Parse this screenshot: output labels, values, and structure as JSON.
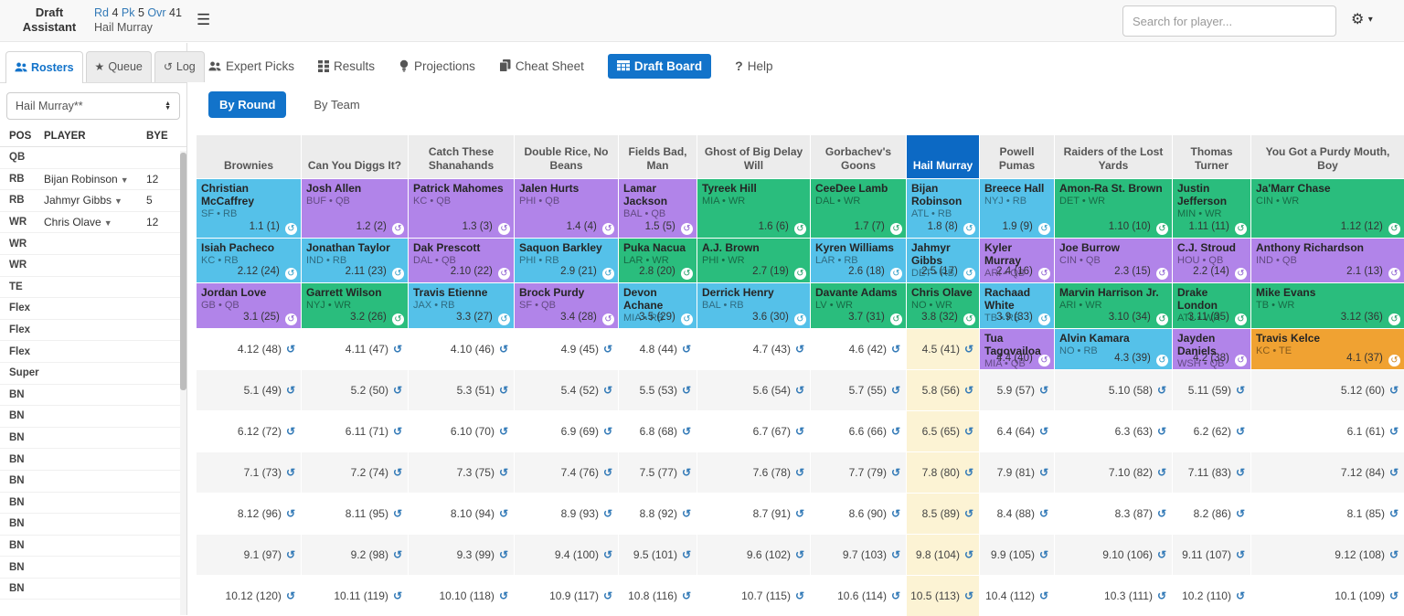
{
  "header": {
    "app_title_line1": "Draft",
    "app_title_line2": "Assistant",
    "pick_status": {
      "round_label": "Rd",
      "round": "4",
      "pick_label": "Pk",
      "pick": "5",
      "overall_label": "Ovr",
      "overall": "41",
      "on_clock_team": "Hail Murray"
    },
    "search_placeholder": "Search for player...",
    "icons": [
      "hamburger-icon",
      "gear-icon",
      "caret-down-icon"
    ]
  },
  "sidebar": {
    "tabs": [
      {
        "label": "Rosters",
        "icon": "users-icon",
        "active": true
      },
      {
        "label": "Queue",
        "icon": "star-icon",
        "active": false
      },
      {
        "label": "Log",
        "icon": "history-icon",
        "active": false
      }
    ],
    "team_select_value": "Hail Murray**",
    "roster": {
      "columns": [
        "POS",
        "PLAYER",
        "BYE"
      ],
      "slots": [
        {
          "pos": "QB",
          "player": "",
          "bye": ""
        },
        {
          "pos": "RB",
          "player": "Bijan Robinson",
          "bye": "12"
        },
        {
          "pos": "RB",
          "player": "Jahmyr Gibbs",
          "bye": "5"
        },
        {
          "pos": "WR",
          "player": "Chris Olave",
          "bye": "12"
        },
        {
          "pos": "WR",
          "player": "",
          "bye": ""
        },
        {
          "pos": "WR",
          "player": "",
          "bye": ""
        },
        {
          "pos": "TE",
          "player": "",
          "bye": ""
        },
        {
          "pos": "Flex",
          "player": "",
          "bye": ""
        },
        {
          "pos": "Flex",
          "player": "",
          "bye": ""
        },
        {
          "pos": "Flex",
          "player": "",
          "bye": ""
        },
        {
          "pos": "Super",
          "player": "",
          "bye": ""
        },
        {
          "pos": "BN",
          "player": "",
          "bye": ""
        },
        {
          "pos": "BN",
          "player": "",
          "bye": ""
        },
        {
          "pos": "BN",
          "player": "",
          "bye": ""
        },
        {
          "pos": "BN",
          "player": "",
          "bye": ""
        },
        {
          "pos": "BN",
          "player": "",
          "bye": ""
        },
        {
          "pos": "BN",
          "player": "",
          "bye": ""
        },
        {
          "pos": "BN",
          "player": "",
          "bye": ""
        },
        {
          "pos": "BN",
          "player": "",
          "bye": ""
        },
        {
          "pos": "BN",
          "player": "",
          "bye": ""
        },
        {
          "pos": "BN",
          "player": "",
          "bye": ""
        }
      ]
    }
  },
  "nav": {
    "items": [
      {
        "label": "Expert Picks",
        "icon": "users-icon",
        "active": false
      },
      {
        "label": "Results",
        "icon": "grid-icon",
        "active": false
      },
      {
        "label": "Projections",
        "icon": "lightbulb-icon",
        "active": false
      },
      {
        "label": "Cheat Sheet",
        "icon": "copy-icon",
        "active": false
      },
      {
        "label": "Draft Board",
        "icon": "table-icon",
        "active": true
      },
      {
        "label": "Help",
        "icon": "question-icon",
        "active": false
      }
    ]
  },
  "board": {
    "view_tabs": [
      {
        "label": "By Round",
        "active": true
      },
      {
        "label": "By Team",
        "active": false
      }
    ],
    "my_team": "Hail Murray",
    "my_team_index": 7,
    "colors": {
      "RB": "#55c1e9",
      "QB": "#b184e9",
      "WR": "#2abd7d",
      "TE": "#f0a232",
      "my_team_header": "#0c69c4",
      "my_team_empty": "#fcf3d4",
      "active_blue": "#1273ca",
      "link_blue": "#337ab7"
    },
    "teams": [
      "Brownies",
      "Can You Diggs It?",
      "Catch These Shanahands",
      "Double Rice, No Beans",
      "Fields Bad, Man",
      "Ghost of Big Delay Will",
      "Gorbachev's Goons",
      "Hail Murray",
      "Powell Pumas",
      "Raiders of the Lost Yards",
      "Thomas Turner",
      "You Got a Purdy Mouth, Boy"
    ],
    "rows": [
      [
        {
          "player": "Christian McCaffrey",
          "team": "SF",
          "pos": "RB",
          "pick": "1.1 (1)"
        },
        {
          "player": "Josh Allen",
          "team": "BUF",
          "pos": "QB",
          "pick": "1.2 (2)"
        },
        {
          "player": "Patrick Mahomes",
          "team": "KC",
          "pos": "QB",
          "pick": "1.3 (3)"
        },
        {
          "player": "Jalen Hurts",
          "team": "PHI",
          "pos": "QB",
          "pick": "1.4 (4)"
        },
        {
          "player": "Lamar Jackson",
          "team": "BAL",
          "pos": "QB",
          "pick": "1.5 (5)"
        },
        {
          "player": "Tyreek Hill",
          "team": "MIA",
          "pos": "WR",
          "pick": "1.6 (6)"
        },
        {
          "player": "CeeDee Lamb",
          "team": "DAL",
          "pos": "WR",
          "pick": "1.7 (7)"
        },
        {
          "player": "Bijan Robinson",
          "team": "ATL",
          "pos": "RB",
          "pick": "1.8 (8)"
        },
        {
          "player": "Breece Hall",
          "team": "NYJ",
          "pos": "RB",
          "pick": "1.9 (9)"
        },
        {
          "player": "Amon-Ra St. Brown",
          "team": "DET",
          "pos": "WR",
          "pick": "1.10 (10)"
        },
        {
          "player": "Justin Jefferson",
          "team": "MIN",
          "pos": "WR",
          "pick": "1.11 (11)"
        },
        {
          "player": "Ja'Marr Chase",
          "team": "CIN",
          "pos": "WR",
          "pick": "1.12 (12)"
        }
      ],
      [
        {
          "player": "Isiah Pacheco",
          "team": "KC",
          "pos": "RB",
          "pick": "2.12 (24)"
        },
        {
          "player": "Jonathan Taylor",
          "team": "IND",
          "pos": "RB",
          "pick": "2.11 (23)"
        },
        {
          "player": "Dak Prescott",
          "team": "DAL",
          "pos": "QB",
          "pick": "2.10 (22)"
        },
        {
          "player": "Saquon Barkley",
          "team": "PHI",
          "pos": "RB",
          "pick": "2.9 (21)"
        },
        {
          "player": "Puka Nacua",
          "team": "LAR",
          "pos": "WR",
          "pick": "2.8 (20)"
        },
        {
          "player": "A.J. Brown",
          "team": "PHI",
          "pos": "WR",
          "pick": "2.7 (19)"
        },
        {
          "player": "Kyren Williams",
          "team": "LAR",
          "pos": "RB",
          "pick": "2.6 (18)"
        },
        {
          "player": "Jahmyr Gibbs",
          "team": "DET",
          "pos": "RB",
          "pick": "2.5 (17)"
        },
        {
          "player": "Kyler Murray",
          "team": "ARI",
          "pos": "QB",
          "pick": "2.4 (16)"
        },
        {
          "player": "Joe Burrow",
          "team": "CIN",
          "pos": "QB",
          "pick": "2.3 (15)"
        },
        {
          "player": "C.J. Stroud",
          "team": "HOU",
          "pos": "QB",
          "pick": "2.2 (14)"
        },
        {
          "player": "Anthony Richardson",
          "team": "IND",
          "pos": "QB",
          "pick": "2.1 (13)"
        }
      ],
      [
        {
          "player": "Jordan Love",
          "team": "GB",
          "pos": "QB",
          "pick": "3.1 (25)"
        },
        {
          "player": "Garrett Wilson",
          "team": "NYJ",
          "pos": "WR",
          "pick": "3.2 (26)"
        },
        {
          "player": "Travis Etienne",
          "team": "JAX",
          "pos": "RB",
          "pick": "3.3 (27)"
        },
        {
          "player": "Brock Purdy",
          "team": "SF",
          "pos": "QB",
          "pick": "3.4 (28)"
        },
        {
          "player": "Devon Achane",
          "team": "MIA",
          "pos": "RB",
          "pick": "3.5 (29)"
        },
        {
          "player": "Derrick Henry",
          "team": "BAL",
          "pos": "RB",
          "pick": "3.6 (30)"
        },
        {
          "player": "Davante Adams",
          "team": "LV",
          "pos": "WR",
          "pick": "3.7 (31)"
        },
        {
          "player": "Chris Olave",
          "team": "NO",
          "pos": "WR",
          "pick": "3.8 (32)"
        },
        {
          "player": "Rachaad White",
          "team": "TB",
          "pos": "RB",
          "pick": "3.9 (33)"
        },
        {
          "player": "Marvin Harrison Jr.",
          "team": "ARI",
          "pos": "WR",
          "pick": "3.10 (34)"
        },
        {
          "player": "Drake London",
          "team": "ATL",
          "pos": "WR",
          "pick": "3.11 (35)"
        },
        {
          "player": "Mike Evans",
          "team": "TB",
          "pos": "WR",
          "pick": "3.12 (36)"
        }
      ],
      [
        {
          "pick": "4.12 (48)"
        },
        {
          "pick": "4.11 (47)"
        },
        {
          "pick": "4.10 (46)"
        },
        {
          "pick": "4.9 (45)"
        },
        {
          "pick": "4.8 (44)"
        },
        {
          "pick": "4.7 (43)"
        },
        {
          "pick": "4.6 (42)"
        },
        {
          "pick": "4.5 (41)"
        },
        {
          "player": "Tua Tagovailoa",
          "team": "MIA",
          "pos": "QB",
          "pick": "4.4 (40)"
        },
        {
          "player": "Alvin Kamara",
          "team": "NO",
          "pos": "RB",
          "pick": "4.3 (39)"
        },
        {
          "player": "Jayden Daniels",
          "team": "WSH",
          "pos": "QB",
          "pick": "4.2 (38)"
        },
        {
          "player": "Travis Kelce",
          "team": "KC",
          "pos": "TE",
          "pick": "4.1 (37)"
        }
      ],
      [
        {
          "pick": "5.1 (49)"
        },
        {
          "pick": "5.2 (50)"
        },
        {
          "pick": "5.3 (51)"
        },
        {
          "pick": "5.4 (52)"
        },
        {
          "pick": "5.5 (53)"
        },
        {
          "pick": "5.6 (54)"
        },
        {
          "pick": "5.7 (55)"
        },
        {
          "pick": "5.8 (56)"
        },
        {
          "pick": "5.9 (57)"
        },
        {
          "pick": "5.10 (58)"
        },
        {
          "pick": "5.11 (59)"
        },
        {
          "pick": "5.12 (60)"
        }
      ],
      [
        {
          "pick": "6.12 (72)"
        },
        {
          "pick": "6.11 (71)"
        },
        {
          "pick": "6.10 (70)"
        },
        {
          "pick": "6.9 (69)"
        },
        {
          "pick": "6.8 (68)"
        },
        {
          "pick": "6.7 (67)"
        },
        {
          "pick": "6.6 (66)"
        },
        {
          "pick": "6.5 (65)"
        },
        {
          "pick": "6.4 (64)"
        },
        {
          "pick": "6.3 (63)"
        },
        {
          "pick": "6.2 (62)"
        },
        {
          "pick": "6.1 (61)"
        }
      ],
      [
        {
          "pick": "7.1 (73)"
        },
        {
          "pick": "7.2 (74)"
        },
        {
          "pick": "7.3 (75)"
        },
        {
          "pick": "7.4 (76)"
        },
        {
          "pick": "7.5 (77)"
        },
        {
          "pick": "7.6 (78)"
        },
        {
          "pick": "7.7 (79)"
        },
        {
          "pick": "7.8 (80)"
        },
        {
          "pick": "7.9 (81)"
        },
        {
          "pick": "7.10 (82)"
        },
        {
          "pick": "7.11 (83)"
        },
        {
          "pick": "7.12 (84)"
        }
      ],
      [
        {
          "pick": "8.12 (96)"
        },
        {
          "pick": "8.11 (95)"
        },
        {
          "pick": "8.10 (94)"
        },
        {
          "pick": "8.9 (93)"
        },
        {
          "pick": "8.8 (92)"
        },
        {
          "pick": "8.7 (91)"
        },
        {
          "pick": "8.6 (90)"
        },
        {
          "pick": "8.5 (89)"
        },
        {
          "pick": "8.4 (88)"
        },
        {
          "pick": "8.3 (87)"
        },
        {
          "pick": "8.2 (86)"
        },
        {
          "pick": "8.1 (85)"
        }
      ],
      [
        {
          "pick": "9.1 (97)"
        },
        {
          "pick": "9.2 (98)"
        },
        {
          "pick": "9.3 (99)"
        },
        {
          "pick": "9.4 (100)"
        },
        {
          "pick": "9.5 (101)"
        },
        {
          "pick": "9.6 (102)"
        },
        {
          "pick": "9.7 (103)"
        },
        {
          "pick": "9.8 (104)"
        },
        {
          "pick": "9.9 (105)"
        },
        {
          "pick": "9.10 (106)"
        },
        {
          "pick": "9.11 (107)"
        },
        {
          "pick": "9.12 (108)"
        }
      ],
      [
        {
          "pick": "10.12 (120)"
        },
        {
          "pick": "10.11 (119)"
        },
        {
          "pick": "10.10 (118)"
        },
        {
          "pick": "10.9 (117)"
        },
        {
          "pick": "10.8 (116)"
        },
        {
          "pick": "10.7 (115)"
        },
        {
          "pick": "10.6 (114)"
        },
        {
          "pick": "10.5 (113)"
        },
        {
          "pick": "10.4 (112)"
        },
        {
          "pick": "10.3 (111)"
        },
        {
          "pick": "10.2 (110)"
        },
        {
          "pick": "10.1 (109)"
        }
      ]
    ]
  }
}
